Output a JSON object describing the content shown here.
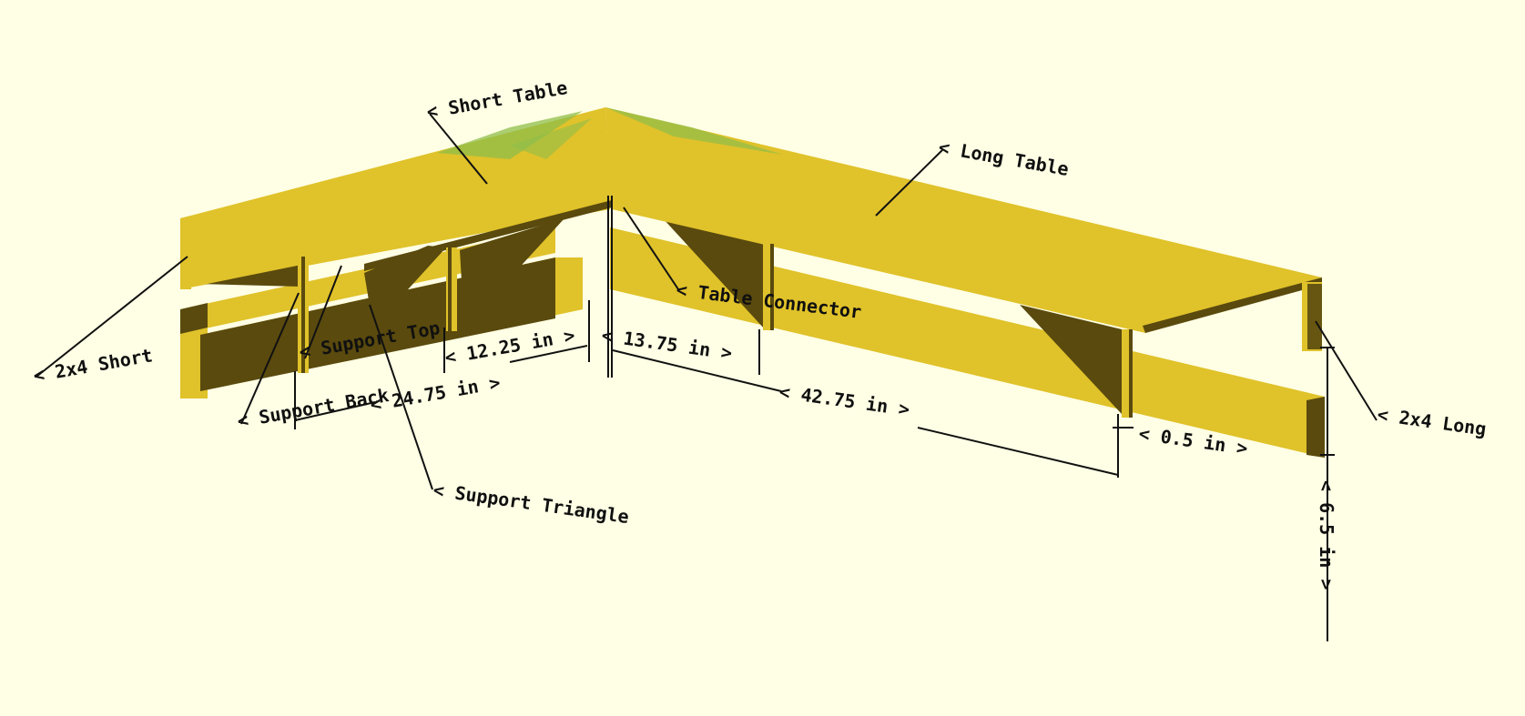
{
  "scene": {
    "background": "#ffffe5",
    "wood_top": "#e0c22a",
    "wood_side": "#5a4a0e",
    "wood_highlight": "#8fbe4a"
  },
  "labels": {
    "short_table": "< Short Table",
    "long_table": "< Long Table",
    "table_connector": "< Table Connector",
    "two_by_four_short": "< 2x4 Short",
    "two_by_four_long": "< 2x4 Long",
    "support_top": "< Support Top",
    "support_back": "< Support Back",
    "support_triangle": "< Support Triangle"
  },
  "dimensions": {
    "d_12_25": "< 12.25 in >",
    "d_13_75": "< 13.75 in >",
    "d_24_75": "< 24.75 in >",
    "d_42_75": "< 42.75 in >",
    "d_0_5": "< 0.5 in >",
    "d_6_5": "< 6.5 in >"
  }
}
